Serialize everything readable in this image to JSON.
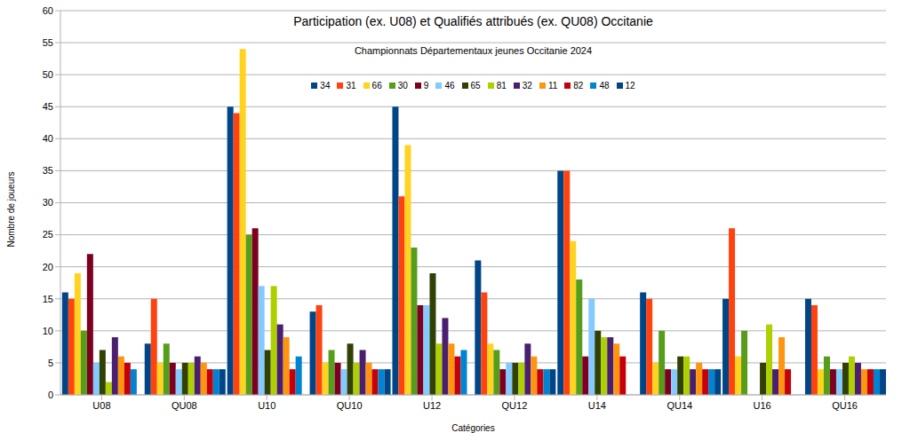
{
  "chart_data": {
    "type": "bar",
    "title": "Participation (ex. U08) et Qualifiés attribués (ex. QU08) Occitanie",
    "subtitle": "Championnats Départementaux jeunes Occitanie 2024",
    "x_label": "Catégories",
    "y_label": "Nombre de joueurs",
    "categories": [
      "U08",
      "QU08",
      "U10",
      "QU10",
      "U12",
      "QU12",
      "U14",
      "QU14",
      "U16",
      "QU16"
    ],
    "ylim": [
      0,
      60
    ],
    "yticks": [
      0,
      5,
      10,
      15,
      20,
      25,
      30,
      35,
      40,
      45,
      50,
      55,
      60
    ],
    "grid": true,
    "legend": "top",
    "series": [
      {
        "name": "34",
        "color": "#004586",
        "values": [
          16,
          8,
          45,
          13,
          45,
          21,
          35,
          16,
          15,
          15
        ]
      },
      {
        "name": "31",
        "color": "#ff420e",
        "values": [
          15,
          15,
          44,
          14,
          31,
          16,
          35,
          15,
          26,
          14
        ]
      },
      {
        "name": "66",
        "color": "#ffd320",
        "values": [
          19,
          5,
          54,
          5,
          39,
          8,
          24,
          5,
          6,
          4
        ]
      },
      {
        "name": "30",
        "color": "#579d1c",
        "values": [
          10,
          8,
          25,
          7,
          23,
          7,
          18,
          10,
          10,
          6
        ]
      },
      {
        "name": "9",
        "color": "#7e0021",
        "values": [
          22,
          5,
          26,
          5,
          14,
          4,
          6,
          4,
          null,
          4
        ]
      },
      {
        "name": "46",
        "color": "#83caff",
        "values": [
          5,
          4,
          17,
          4,
          14,
          5,
          15,
          4,
          null,
          4
        ]
      },
      {
        "name": "65",
        "color": "#314004",
        "values": [
          7,
          5,
          7,
          8,
          19,
          5,
          10,
          6,
          5,
          5
        ]
      },
      {
        "name": "81",
        "color": "#aecf00",
        "values": [
          2,
          5,
          17,
          5,
          8,
          5,
          9,
          6,
          11,
          6
        ]
      },
      {
        "name": "32",
        "color": "#4b1f6f",
        "values": [
          9,
          6,
          11,
          7,
          12,
          8,
          9,
          4,
          4,
          5
        ]
      },
      {
        "name": "11",
        "color": "#ff950e",
        "values": [
          6,
          5,
          9,
          5,
          8,
          6,
          8,
          5,
          9,
          4
        ]
      },
      {
        "name": "82",
        "color": "#c5000b",
        "values": [
          5,
          4,
          4,
          4,
          6,
          4,
          6,
          4,
          4,
          4
        ]
      },
      {
        "name": "48",
        "color": "#0084d1",
        "values": [
          4,
          4,
          6,
          4,
          7,
          4,
          null,
          4,
          null,
          4
        ]
      },
      {
        "name": "12",
        "color": "#004586",
        "values": [
          null,
          4,
          null,
          4,
          null,
          4,
          null,
          4,
          null,
          4
        ]
      }
    ]
  }
}
